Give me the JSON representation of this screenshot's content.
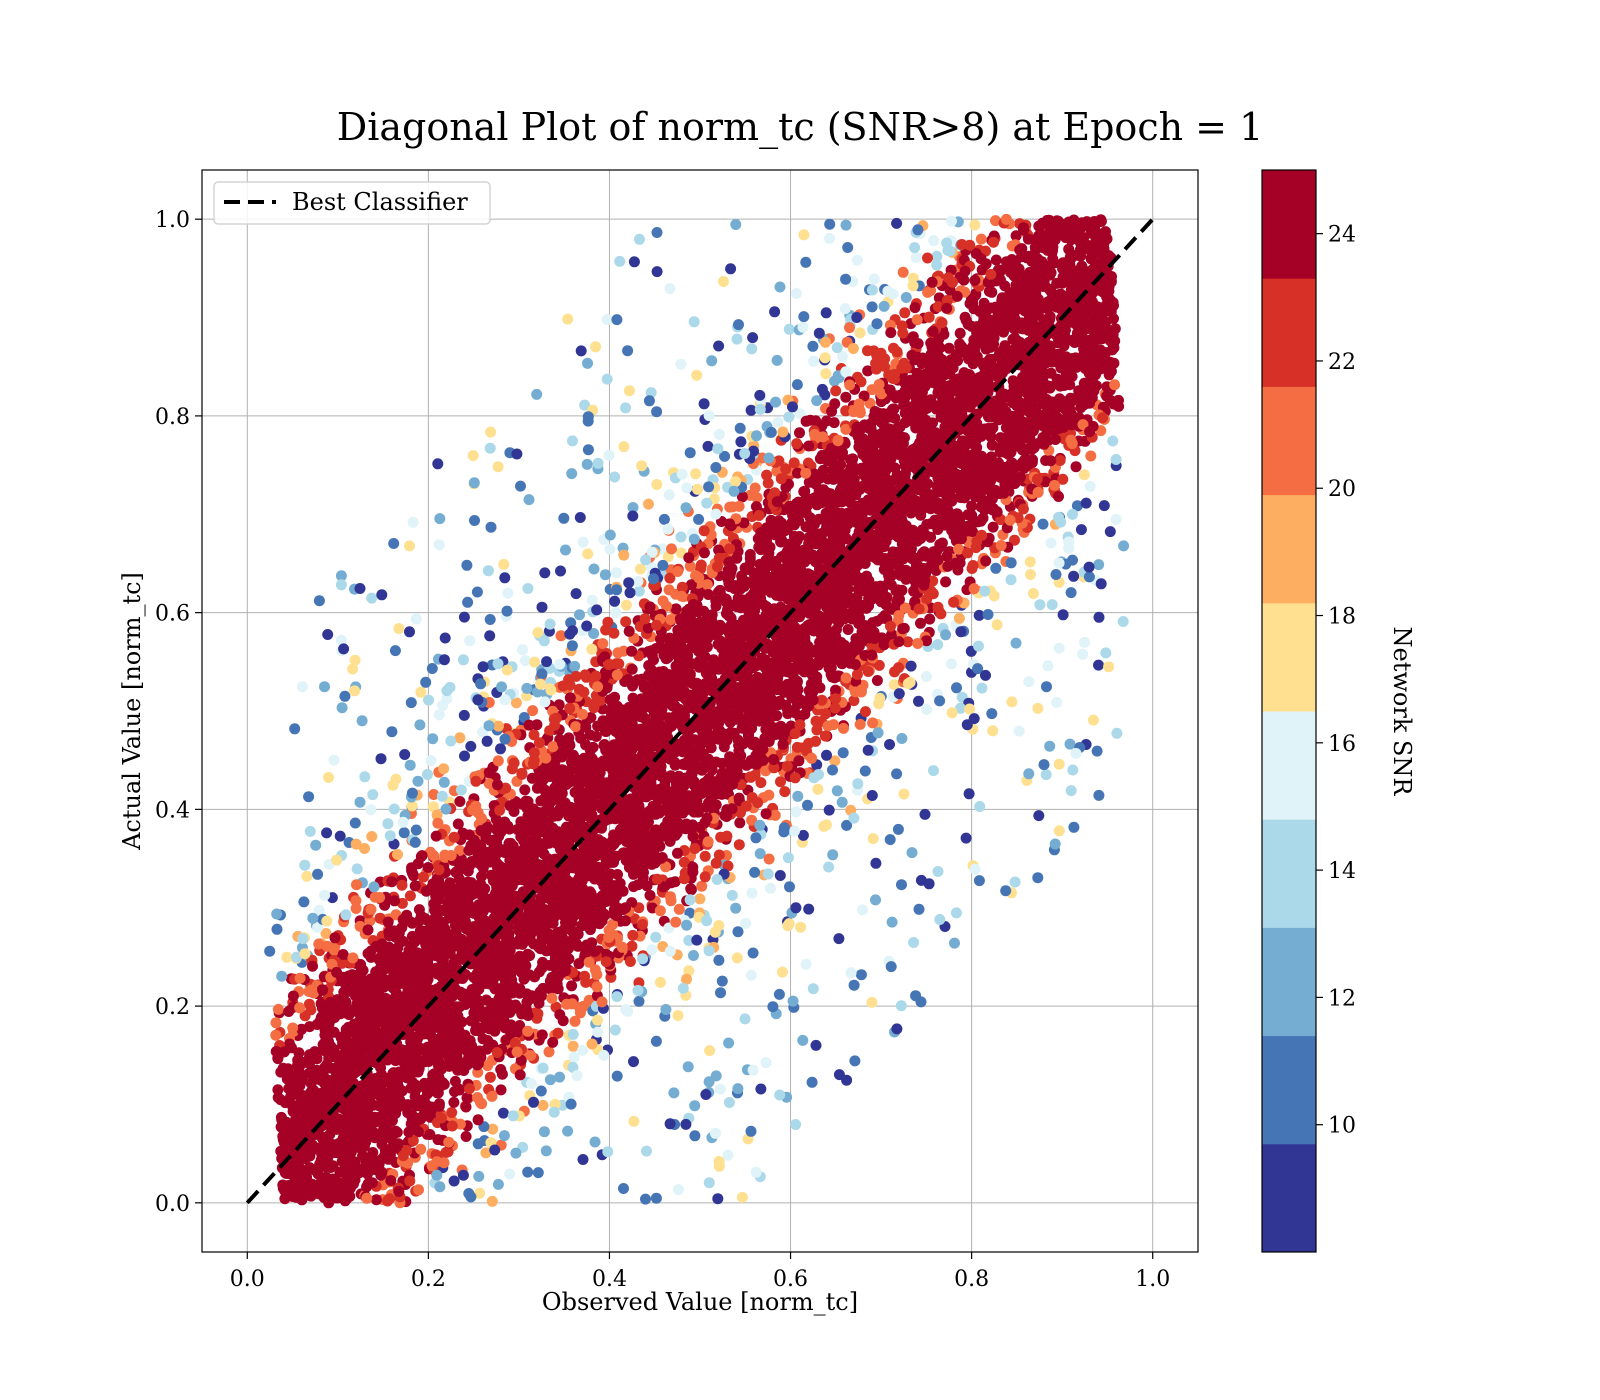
{
  "chart_data": {
    "type": "scatter",
    "title": "Diagonal Plot of norm_tc (SNR>8) at Epoch = 1",
    "xlabel": "Observed Value [norm_tc]",
    "ylabel": "Actual Value [norm_tc]",
    "xlim": [
      -0.05,
      1.05
    ],
    "ylim": [
      -0.05,
      1.05
    ],
    "x_ticks": [
      "0.0",
      "0.2",
      "0.4",
      "0.6",
      "0.8",
      "1.0"
    ],
    "y_ticks": [
      "0.0",
      "0.2",
      "0.4",
      "0.6",
      "0.8",
      "1.0"
    ],
    "grid": true,
    "legend": {
      "position": "top-left",
      "entries": [
        "Best Classifier"
      ]
    },
    "reference_line": {
      "name": "Best Classifier",
      "x": [
        0,
        1
      ],
      "y": [
        0,
        1
      ],
      "style": "dashed",
      "color": "#000000"
    },
    "colorbar": {
      "label": "Network SNR",
      "range": [
        8,
        25
      ],
      "ticks": [
        "10",
        "12",
        "14",
        "16",
        "18",
        "20",
        "22",
        "24"
      ],
      "tick_values": [
        10,
        12,
        14,
        16,
        18,
        20,
        22,
        24
      ],
      "colors": [
        "#313695",
        "#4575b4",
        "#74add1",
        "#abd9e9",
        "#e0f3f8",
        "#fee090",
        "#fdae61",
        "#f46d43",
        "#d73027",
        "#a50026"
      ]
    },
    "scatter_summary": {
      "x_range": [
        0.02,
        0.97
      ],
      "y_range": [
        0.0,
        1.0
      ],
      "dense_band_half_width": 0.15,
      "note_colors": "high SNR points cluster along the diagonal; low SNR points spread away from it"
    }
  }
}
